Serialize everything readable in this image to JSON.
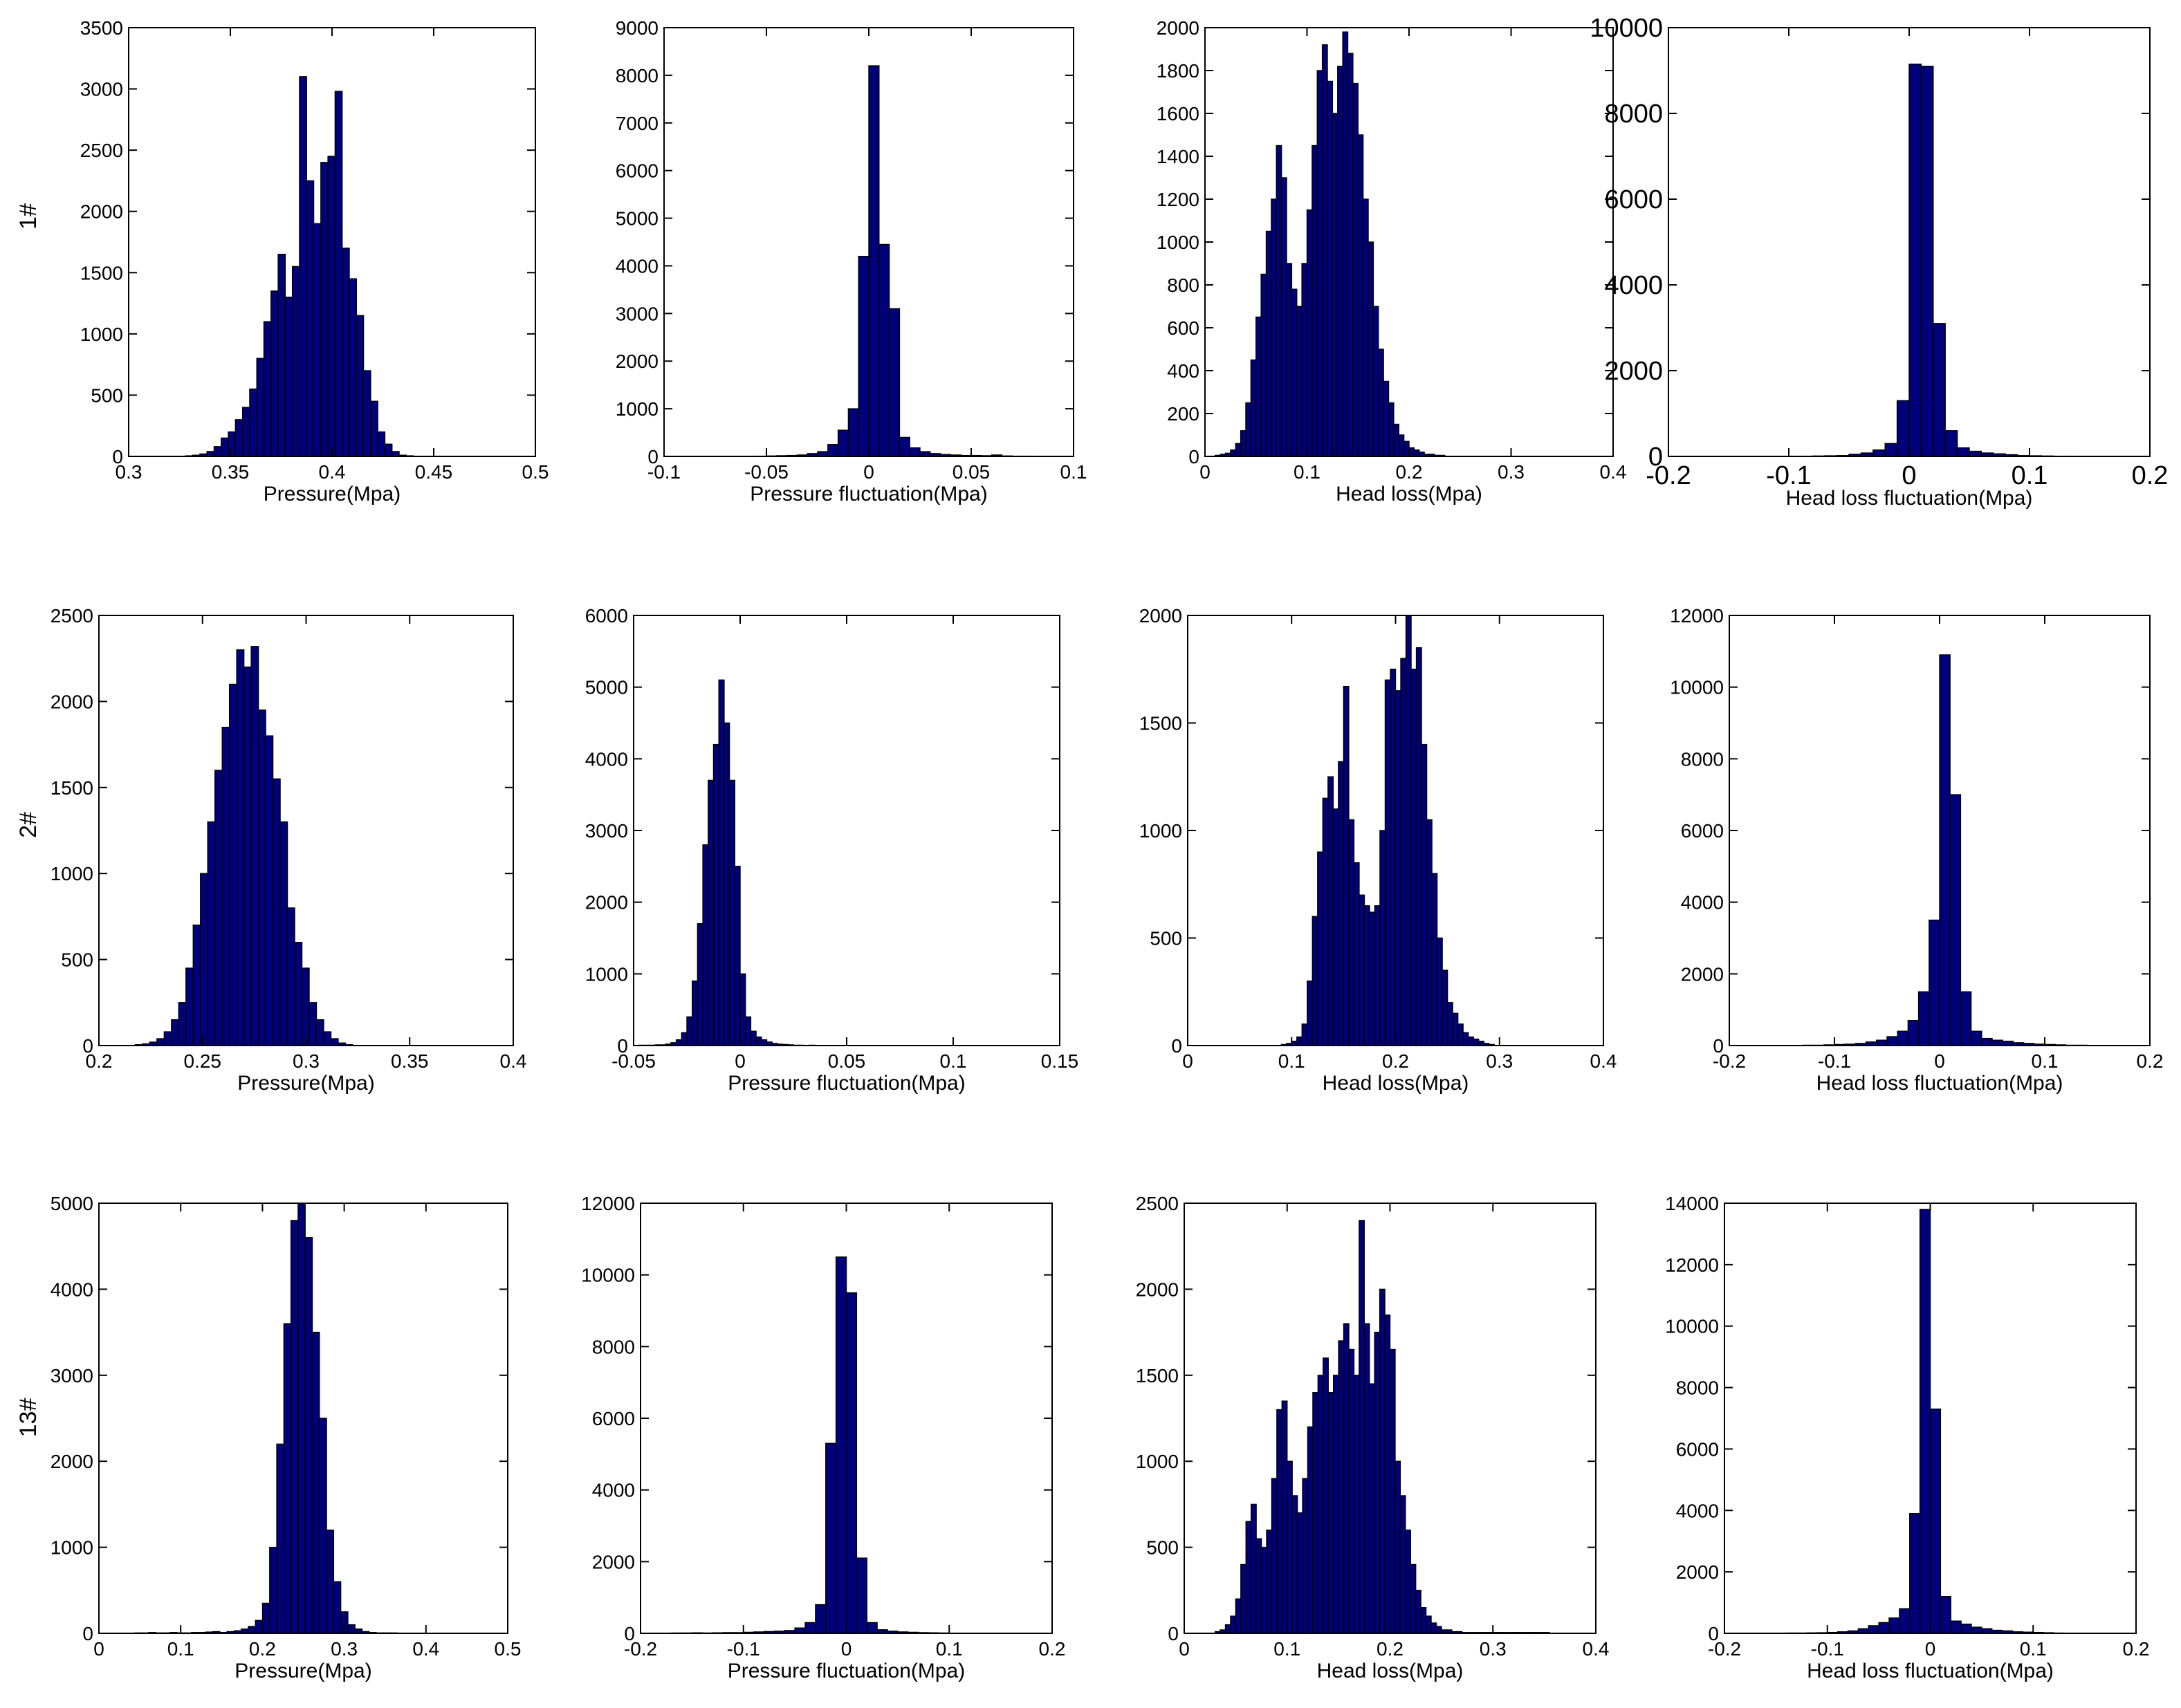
{
  "figure": {
    "row_labels": [
      "1#",
      "2#",
      "13#"
    ]
  },
  "chart_data": [
    {
      "type": "bar",
      "row": "1#",
      "xlabel": "Pressure(Mpa)",
      "ylabel": "",
      "xlim": [
        0.3,
        0.5
      ],
      "ylim": [
        0,
        3500
      ],
      "xticks": [
        "0.3",
        "0.35",
        "0.4",
        "0.45",
        "0.5"
      ],
      "yticks": [
        "0",
        "500",
        "1000",
        "1500",
        "2000",
        "2500",
        "3000",
        "3500"
      ],
      "bin_start": 0.3,
      "bin_width": 0.0035,
      "values": [
        0,
        0,
        0,
        0,
        0,
        0,
        0,
        0,
        5,
        10,
        20,
        40,
        80,
        150,
        200,
        300,
        400,
        550,
        800,
        1100,
        1350,
        1650,
        1300,
        1550,
        3100,
        2250,
        1900,
        2400,
        2450,
        2980,
        1700,
        1450,
        1150,
        700,
        450,
        200,
        100,
        40,
        10,
        5,
        0,
        0,
        0,
        0,
        0,
        0,
        0,
        0,
        0,
        0,
        0,
        0,
        0,
        0,
        0,
        0,
        0
      ]
    },
    {
      "type": "bar",
      "row": "1#",
      "xlabel": "Pressure fluctuation(Mpa)",
      "ylabel": "",
      "xlim": [
        -0.1,
        0.1
      ],
      "ylim": [
        0,
        9000
      ],
      "xticks": [
        "-0.1",
        "-0.05",
        "0",
        "0.05",
        "0.1"
      ],
      "yticks": [
        "0",
        "1000",
        "2000",
        "3000",
        "4000",
        "5000",
        "6000",
        "7000",
        "8000",
        "9000"
      ],
      "bin_start": -0.1,
      "bin_width": 0.005,
      "values": [
        0,
        0,
        0,
        0,
        0,
        0,
        0,
        0,
        0,
        5,
        10,
        15,
        20,
        30,
        60,
        100,
        250,
        550,
        1000,
        4200,
        8200,
        4450,
        3100,
        400,
        180,
        100,
        60,
        40,
        30,
        20,
        20,
        15,
        30,
        10,
        5,
        5,
        0,
        0,
        0,
        0
      ]
    },
    {
      "type": "bar",
      "row": "1#",
      "xlabel": "Head loss(Mpa)",
      "ylabel": "",
      "xlim": [
        0,
        0.4
      ],
      "ylim": [
        0,
        2000
      ],
      "xticks": [
        "0",
        "0.1",
        "0.2",
        "0.3",
        "0.4"
      ],
      "yticks": [
        "0",
        "200",
        "400",
        "600",
        "800",
        "1000",
        "1200",
        "1400",
        "1600",
        "1800",
        "2000"
      ],
      "bin_start": 0,
      "bin_width": 0.005,
      "values": [
        0,
        0,
        5,
        10,
        15,
        30,
        60,
        120,
        250,
        450,
        650,
        850,
        1050,
        1200,
        1450,
        1300,
        900,
        780,
        700,
        900,
        1150,
        1450,
        1800,
        1920,
        1750,
        1600,
        1820,
        1980,
        1880,
        1740,
        1500,
        1200,
        1000,
        700,
        500,
        350,
        250,
        150,
        100,
        70,
        40,
        30,
        20,
        10,
        10,
        5,
        5,
        0,
        0,
        0,
        0,
        0,
        0,
        0,
        0,
        0,
        0,
        0,
        0,
        0,
        0,
        0,
        0,
        0,
        0,
        0,
        0,
        0,
        0,
        0,
        0,
        0,
        0,
        0,
        0,
        0,
        0,
        0,
        0,
        0
      ]
    },
    {
      "type": "bar",
      "row": "1#",
      "xlabel": "Head loss fluctuation(Mpa)",
      "ylabel": "",
      "xlim": [
        -0.2,
        0.2
      ],
      "ylim": [
        0,
        10000
      ],
      "xticks": [
        "-0.2",
        "-0.1",
        "0",
        "0.1",
        "0.2"
      ],
      "yticks": [
        "0",
        "2000",
        "4000",
        "6000",
        "8000",
        "10000"
      ],
      "bin_start": -0.2,
      "bin_width": 0.01,
      "values": [
        0,
        0,
        0,
        0,
        0,
        0,
        0,
        0,
        0,
        0,
        5,
        5,
        10,
        15,
        20,
        50,
        80,
        150,
        300,
        1300,
        9150,
        9100,
        3100,
        600,
        200,
        120,
        80,
        60,
        40,
        20,
        15,
        10,
        5,
        5,
        0,
        0,
        0,
        0,
        0,
        0
      ]
    },
    {
      "type": "bar",
      "row": "2#",
      "xlabel": "Pressure(Mpa)",
      "ylabel": "",
      "xlim": [
        0.2,
        0.4
      ],
      "ylim": [
        0,
        2500
      ],
      "xticks": [
        "0.2",
        "0.25",
        "0.3",
        "0.35",
        "0.4"
      ],
      "yticks": [
        "0",
        "500",
        "1000",
        "1500",
        "2000",
        "2500"
      ],
      "bin_start": 0.2,
      "bin_width": 0.0035,
      "values": [
        0,
        0,
        0,
        0,
        0,
        5,
        10,
        20,
        40,
        80,
        150,
        250,
        450,
        700,
        1000,
        1300,
        1600,
        1850,
        2100,
        2300,
        2200,
        2320,
        1950,
        1800,
        1550,
        1300,
        800,
        600,
        450,
        250,
        150,
        80,
        40,
        15,
        5,
        0,
        0,
        0,
        0,
        0,
        0,
        0,
        0,
        0,
        0,
        0,
        0,
        0,
        0,
        0,
        0,
        0,
        0,
        0,
        0,
        0,
        0
      ]
    },
    {
      "type": "bar",
      "row": "2#",
      "xlabel": "Pressure fluctuation(Mpa)",
      "ylabel": "",
      "xlim": [
        -0.05,
        0.15
      ],
      "ylim": [
        0,
        6000
      ],
      "xticks": [
        "-0.05",
        "0",
        "0.05",
        "0.1",
        "0.15"
      ],
      "yticks": [
        "0",
        "1000",
        "2000",
        "3000",
        "4000",
        "5000",
        "6000"
      ],
      "bin_start": -0.05,
      "bin_width": 0.0025,
      "values": [
        0,
        5,
        5,
        5,
        10,
        10,
        20,
        40,
        80,
        180,
        400,
        900,
        1700,
        2800,
        3700,
        4200,
        5100,
        4500,
        3700,
        2500,
        1000,
        400,
        200,
        120,
        80,
        50,
        30,
        20,
        15,
        10,
        5,
        5,
        0,
        5,
        0,
        0,
        0,
        0,
        0,
        0,
        0,
        0,
        0,
        0,
        0,
        0,
        0,
        0,
        0,
        0,
        0,
        0,
        0,
        0,
        0,
        0,
        0,
        0,
        0,
        0,
        0,
        0,
        0,
        0,
        0,
        0,
        0,
        0,
        0,
        0,
        0,
        0,
        0,
        0,
        0,
        0,
        0,
        0,
        0,
        0
      ]
    },
    {
      "type": "bar",
      "row": "2#",
      "xlabel": "Head loss(Mpa)",
      "ylabel": "",
      "xlim": [
        0,
        0.4
      ],
      "ylim": [
        0,
        2000
      ],
      "xticks": [
        "0",
        "0.1",
        "0.2",
        "0.3",
        "0.4"
      ],
      "yticks": [
        "0",
        "500",
        "1000",
        "1500",
        "2000"
      ],
      "bin_start": 0,
      "bin_width": 0.005,
      "values": [
        0,
        0,
        0,
        0,
        0,
        0,
        0,
        0,
        0,
        0,
        0,
        0,
        0,
        0,
        0,
        0,
        0,
        0,
        5,
        10,
        20,
        40,
        100,
        300,
        600,
        900,
        1150,
        1250,
        1100,
        1320,
        1670,
        1050,
        850,
        700,
        650,
        620,
        650,
        1000,
        1700,
        1750,
        1650,
        1800,
        2000,
        1750,
        1850,
        1400,
        1050,
        800,
        500,
        350,
        200,
        150,
        100,
        60,
        40,
        30,
        20,
        10,
        5,
        0,
        0,
        0,
        0,
        0,
        0,
        0,
        0,
        0,
        0,
        0,
        0,
        0,
        0,
        0,
        0,
        0,
        0,
        0,
        0,
        0
      ]
    },
    {
      "type": "bar",
      "row": "2#",
      "xlabel": "Head loss fluctuation(Mpa)",
      "ylabel": "",
      "xlim": [
        -0.2,
        0.2
      ],
      "ylim": [
        0,
        12000
      ],
      "xticks": [
        "-0.2",
        "-0.1",
        "0",
        "0.1",
        "0.2"
      ],
      "yticks": [
        "0",
        "2000",
        "4000",
        "6000",
        "8000",
        "10000",
        "12000"
      ],
      "bin_start": -0.2,
      "bin_width": 0.01,
      "values": [
        0,
        0,
        0,
        0,
        5,
        5,
        5,
        10,
        10,
        20,
        30,
        40,
        60,
        100,
        150,
        250,
        400,
        700,
        1500,
        3500,
        10900,
        7000,
        1500,
        400,
        200,
        150,
        120,
        80,
        60,
        40,
        30,
        20,
        10,
        10,
        5,
        5,
        0,
        0,
        0,
        0
      ]
    },
    {
      "type": "bar",
      "row": "13#",
      "xlabel": "Pressure(Mpa)",
      "ylabel": "",
      "xlim": [
        0,
        0.5
      ],
      "ylim": [
        0,
        5000
      ],
      "xticks": [
        "0",
        "0.1",
        "0.2",
        "0.3",
        "0.4",
        "0.5"
      ],
      "yticks": [
        "0",
        "1000",
        "2000",
        "3000",
        "4000",
        "5000"
      ],
      "bin_start": 0,
      "bin_width": 0.0087,
      "values": [
        0,
        0,
        0,
        0,
        0,
        5,
        5,
        10,
        5,
        5,
        10,
        5,
        5,
        10,
        10,
        15,
        20,
        10,
        20,
        30,
        50,
        80,
        150,
        350,
        1000,
        2200,
        3600,
        4800,
        5000,
        4600,
        3500,
        2500,
        1200,
        600,
        250,
        100,
        50,
        20,
        10,
        5,
        5,
        5,
        0,
        0,
        0,
        0,
        0,
        0,
        0,
        0,
        0,
        0,
        0,
        0,
        0,
        0,
        0
      ]
    },
    {
      "type": "bar",
      "row": "13#",
      "xlabel": "Pressure fluctuation(Mpa)",
      "ylabel": "",
      "xlim": [
        -0.2,
        0.2
      ],
      "ylim": [
        0,
        12000
      ],
      "xticks": [
        "-0.2",
        "-0.1",
        "0",
        "0.1",
        "0.2"
      ],
      "yticks": [
        "0",
        "2000",
        "4000",
        "6000",
        "8000",
        "10000",
        "12000"
      ],
      "bin_start": -0.2,
      "bin_width": 0.01,
      "values": [
        0,
        5,
        5,
        10,
        10,
        15,
        10,
        15,
        20,
        20,
        30,
        40,
        50,
        60,
        80,
        150,
        300,
        800,
        5300,
        10500,
        9500,
        2100,
        300,
        100,
        60,
        40,
        30,
        20,
        15,
        10,
        5,
        5,
        0,
        0,
        0,
        0,
        0,
        0,
        0,
        0
      ]
    },
    {
      "type": "bar",
      "row": "13#",
      "xlabel": "Head loss(Mpa)",
      "ylabel": "",
      "xlim": [
        0,
        0.4
      ],
      "ylim": [
        0,
        2500
      ],
      "xticks": [
        "0",
        "0.1",
        "0.2",
        "0.3",
        "0.4"
      ],
      "yticks": [
        "0",
        "500",
        "1000",
        "1500",
        "2000",
        "2500"
      ],
      "bin_start": 0,
      "bin_width": 0.005,
      "values": [
        0,
        0,
        0,
        0,
        0,
        0,
        10,
        20,
        50,
        100,
        200,
        400,
        650,
        750,
        550,
        500,
        600,
        900,
        1300,
        1350,
        1000,
        800,
        700,
        900,
        1200,
        1400,
        1500,
        1600,
        1400,
        1500,
        1700,
        1800,
        1650,
        1500,
        2400,
        1800,
        1450,
        1750,
        2000,
        1850,
        1650,
        1000,
        800,
        600,
        400,
        250,
        150,
        100,
        60,
        40,
        20,
        20,
        10,
        10,
        5,
        5,
        5,
        5,
        5,
        5,
        5,
        5,
        5,
        5,
        5,
        5,
        5,
        5,
        5,
        5,
        5,
        0,
        0,
        0,
        0,
        0,
        0,
        0,
        0,
        0
      ]
    },
    {
      "type": "bar",
      "row": "13#",
      "xlabel": "Head loss fluctuation(Mpa)",
      "ylabel": "",
      "xlim": [
        -0.2,
        0.2
      ],
      "ylim": [
        0,
        14000
      ],
      "xticks": [
        "-0.2",
        "-0.1",
        "0",
        "0.1",
        "0.2"
      ],
      "yticks": [
        "0",
        "2000",
        "4000",
        "6000",
        "8000",
        "10000",
        "12000",
        "14000"
      ],
      "bin_start": -0.2,
      "bin_width": 0.01,
      "values": [
        0,
        0,
        0,
        5,
        5,
        5,
        10,
        10,
        15,
        20,
        30,
        50,
        80,
        150,
        250,
        350,
        500,
        800,
        3900,
        13800,
        7300,
        1200,
        400,
        300,
        200,
        150,
        100,
        80,
        50,
        40,
        30,
        20,
        10,
        5,
        5,
        5,
        0,
        0,
        0,
        0
      ]
    }
  ]
}
